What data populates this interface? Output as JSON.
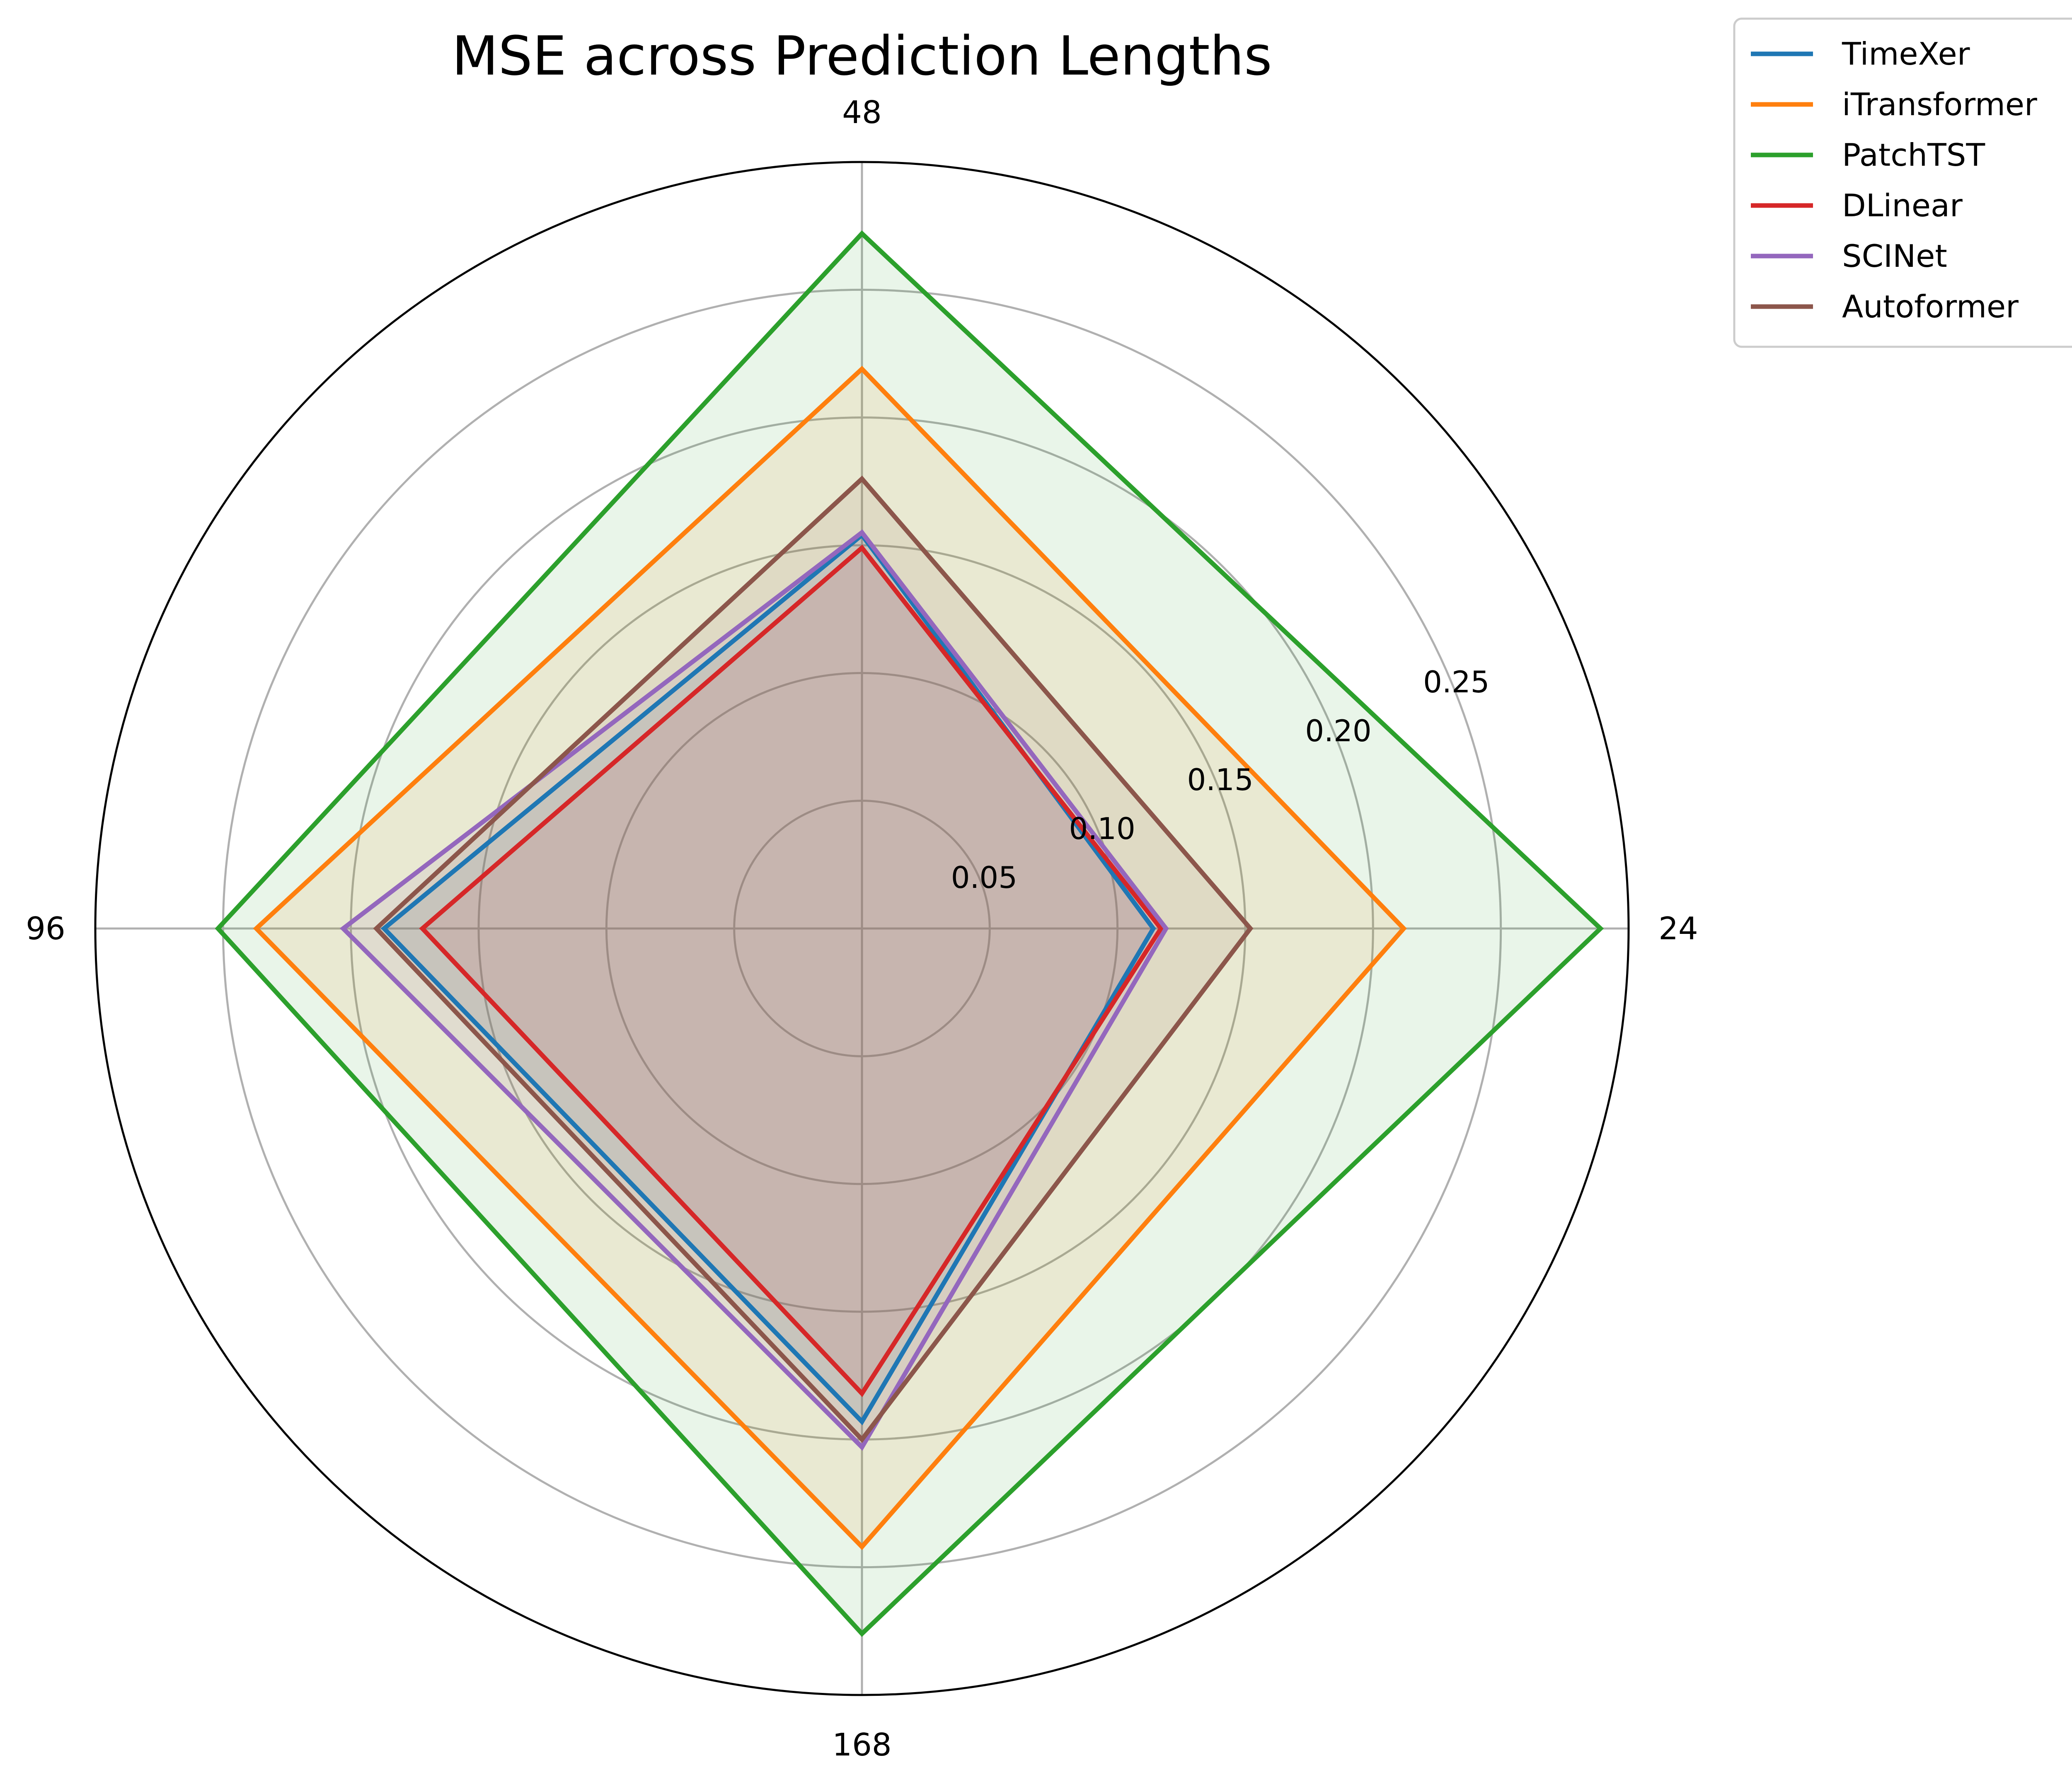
{
  "chart_data": {
    "type": "radar",
    "title": "MSE across Prediction Lengths",
    "axes": [
      "24",
      "48",
      "96",
      "168"
    ],
    "rlim": [
      0,
      0.3
    ],
    "rticks": [
      0.05,
      0.1,
      0.15,
      0.2,
      0.25
    ],
    "rtick_labels": [
      "0.05",
      "0.10",
      "0.15",
      "0.20",
      "0.25"
    ],
    "grid": true,
    "legend_position": "outside top-right",
    "series": [
      {
        "name": "TimeXer",
        "color": "#1f77b4",
        "values": [
          0.114,
          0.154,
          0.187,
          0.193
        ]
      },
      {
        "name": "iTransformer",
        "color": "#ff7f0e",
        "values": [
          0.212,
          0.219,
          0.237,
          0.242
        ]
      },
      {
        "name": "PatchTST",
        "color": "#2ca02c",
        "values": [
          0.289,
          0.272,
          0.252,
          0.276
        ]
      },
      {
        "name": "DLinear",
        "color": "#d62728",
        "values": [
          0.117,
          0.149,
          0.172,
          0.182
        ]
      },
      {
        "name": "SCINet",
        "color": "#9467bd",
        "values": [
          0.119,
          0.155,
          0.203,
          0.203
        ]
      },
      {
        "name": "Autoformer",
        "color": "#8c564b",
        "values": [
          0.152,
          0.176,
          0.19,
          0.2
        ]
      }
    ]
  }
}
